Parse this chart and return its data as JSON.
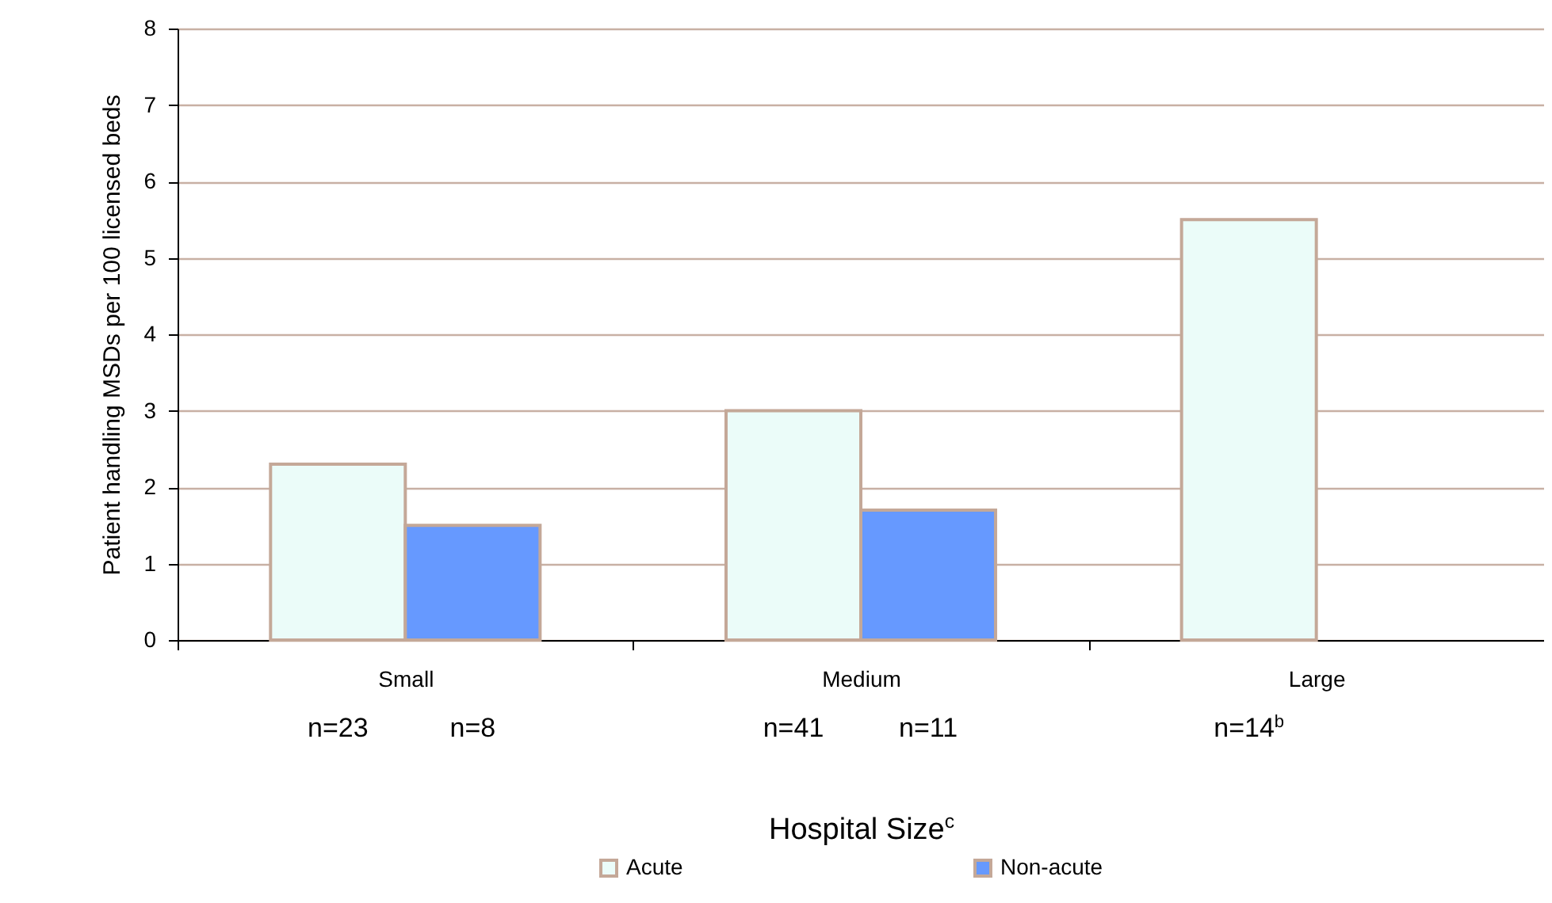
{
  "chart_data": {
    "type": "bar",
    "xlabel": "Hospital Size$^{c}$",
    "ylabel": "Patient handling MSDs per 100 licensed beds",
    "categories": [
      "Small",
      "Medium",
      "Large"
    ],
    "series": [
      {
        "name": "Acute",
        "color": "#ebfcf9",
        "values": [
          2.3,
          3.0,
          5.5
        ]
      },
      {
        "name": "Non-acute",
        "color": "#6699ff",
        "values": [
          1.5,
          1.7,
          null
        ]
      }
    ],
    "ylim": [
      0,
      8
    ],
    "yticks": [
      0,
      1,
      2,
      3,
      4,
      5,
      6,
      7,
      8
    ],
    "grid": "y",
    "legend": "bottom",
    "annotations": [
      "n=23",
      "n=8",
      "n=41",
      "n=11",
      "n=14$^{b}$"
    ]
  }
}
